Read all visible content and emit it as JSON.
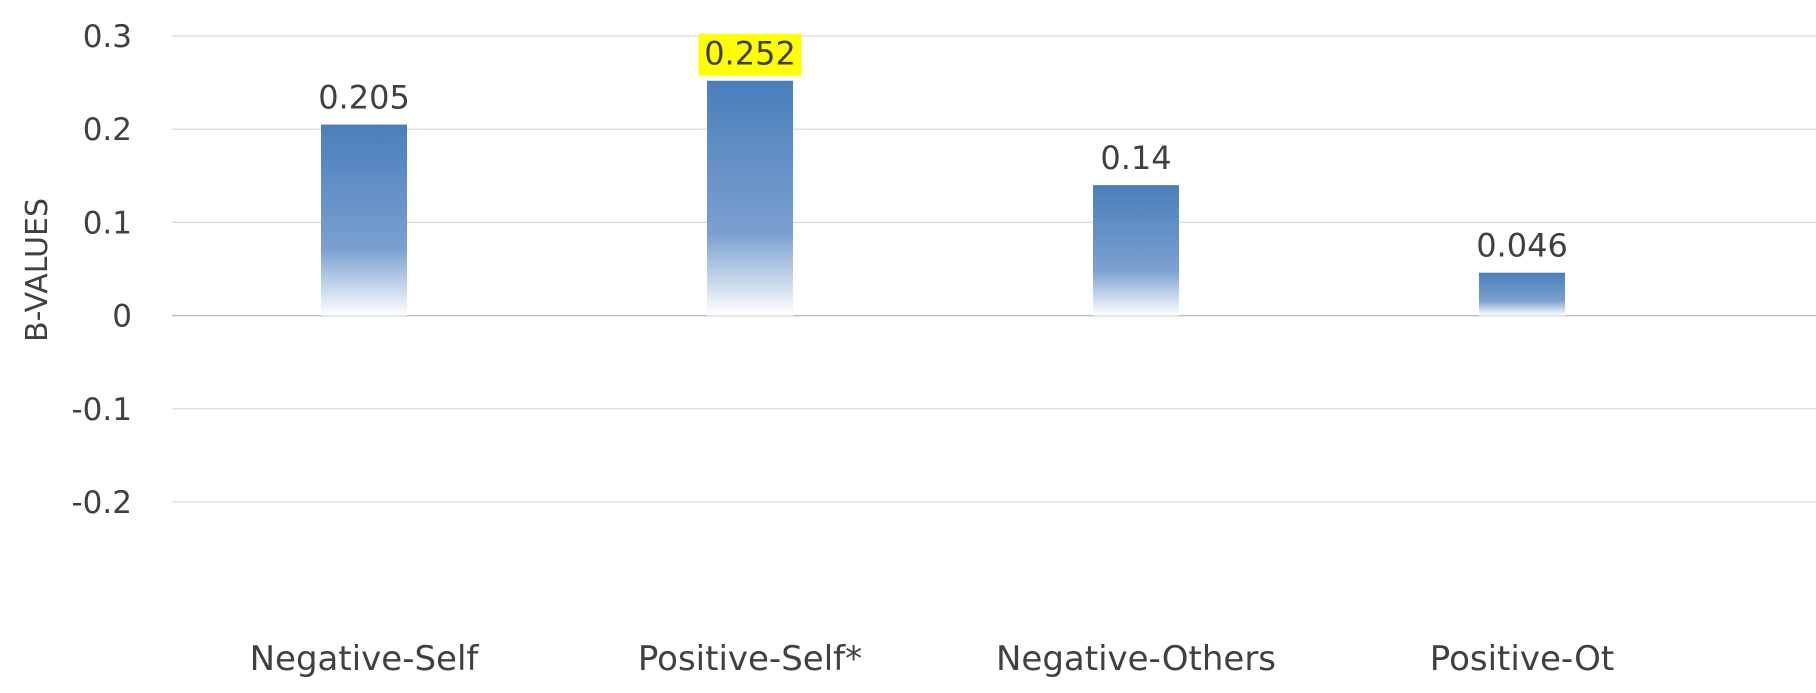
{
  "chart_data": {
    "type": "bar",
    "title": "",
    "xlabel": "",
    "ylabel": "B-VALUES",
    "ylim": [
      -0.2,
      0.3
    ],
    "yticks": [
      0.3,
      0.2,
      0.1,
      0,
      -0.1,
      -0.2
    ],
    "ytick_labels": [
      "0.3",
      "0.2",
      "0.1",
      "0",
      "-0.1",
      "-0.2"
    ],
    "categories": [
      "Negative-Self",
      "Positive-Self*",
      "Negative-Others",
      "Positive-Ot"
    ],
    "values": [
      0.205,
      0.252,
      0.14,
      0.046
    ],
    "data_labels": [
      "0.205",
      "0.252",
      "0.14",
      "0.046"
    ],
    "highlighted_labels": [
      false,
      true,
      false,
      false
    ],
    "grid": true,
    "legend": "none",
    "colors": {
      "bar_top": "#4a7ebb",
      "bar_mid": "#7aa0d0",
      "bar_bottom": "#ffffff",
      "highlight": "#ffff00",
      "grid": "#d9d9d9",
      "zero_line": "#bfbfbf",
      "text": "#404040"
    }
  }
}
